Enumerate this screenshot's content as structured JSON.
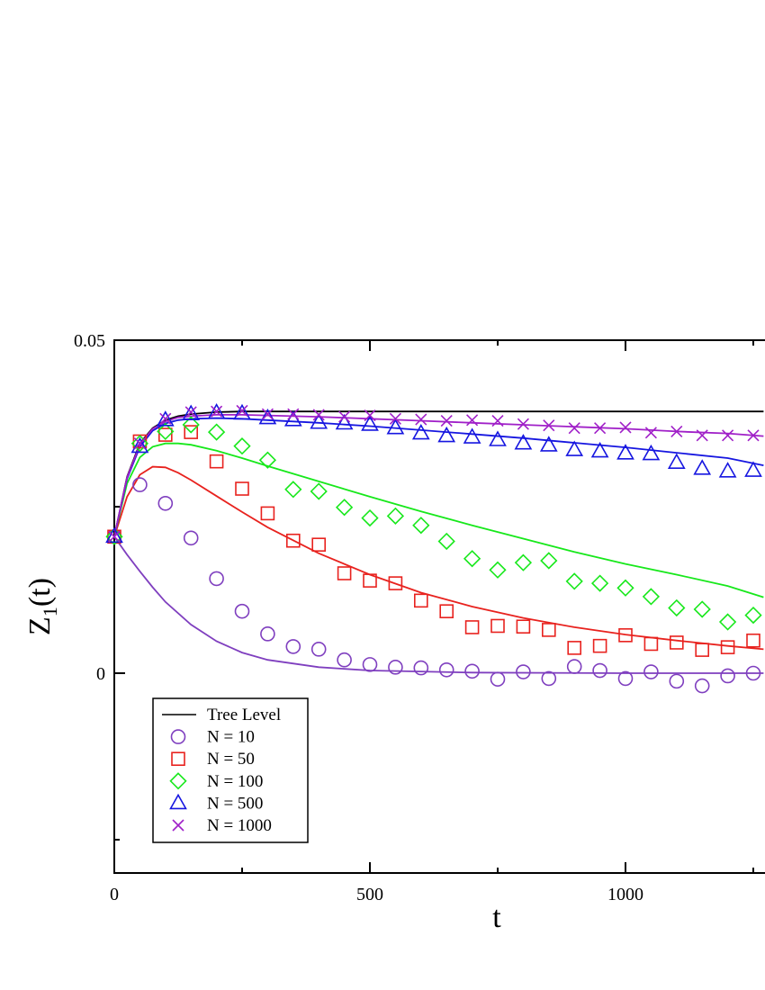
{
  "chart_data": {
    "type": "scatter",
    "xlabel": "t",
    "ylabel": "Z_1(t)",
    "xlim": [
      0,
      1270
    ],
    "ylim": [
      -0.03,
      0.05
    ],
    "x_ticks": [
      0,
      500,
      1000
    ],
    "x_tick_labels": [
      "0",
      "500",
      "1000"
    ],
    "y_ticks": [
      0,
      0.05
    ],
    "y_tick_labels": [
      "0",
      "0.05"
    ],
    "grid": false,
    "legend_position": "bottom-left",
    "legend_labels": [
      "Tree Level",
      "N = 10",
      "N = 50",
      "N = 100",
      "N = 500",
      "N = 1000"
    ],
    "series": [
      {
        "name": "Tree Level",
        "kind": "line",
        "color": "#000000",
        "x": [
          0,
          25,
          50,
          75,
          100,
          125,
          150,
          200,
          250,
          300,
          400,
          600,
          800,
          1000,
          1270
        ],
        "y": [
          0.0205,
          0.0295,
          0.0345,
          0.0368,
          0.038,
          0.0386,
          0.0389,
          0.0392,
          0.0393,
          0.0393,
          0.0393,
          0.0393,
          0.0393,
          0.0393,
          0.0393
        ]
      },
      {
        "name": "N = 10",
        "kind": "markers",
        "marker": "circle",
        "color": "#7f3fbf",
        "x": [
          0,
          50,
          100,
          150,
          200,
          250,
          300,
          350,
          400,
          450,
          500,
          550,
          600,
          650,
          700,
          750,
          800,
          850,
          900,
          950,
          1000,
          1050,
          1100,
          1150,
          1200,
          1250
        ],
        "y": [
          0.0205,
          0.0283,
          0.0255,
          0.0203,
          0.0142,
          0.0093,
          0.0059,
          0.004,
          0.0036,
          0.002,
          0.0013,
          0.0009,
          0.0008,
          0.0005,
          0.0003,
          -0.0009,
          0.0002,
          -0.0008,
          0.001,
          0.0004,
          -0.0008,
          0.0002,
          -0.0012,
          -0.0019,
          -0.0004,
          0.0
        ]
      },
      {
        "name": "N = 10 (fit)",
        "kind": "line",
        "color": "#7f3fbf",
        "x": [
          0,
          25,
          50,
          75,
          100,
          150,
          200,
          250,
          300,
          400,
          500,
          700,
          1000,
          1270
        ],
        "y": [
          0.0205,
          0.0178,
          0.0153,
          0.0129,
          0.0107,
          0.0073,
          0.0048,
          0.0031,
          0.002,
          0.0009,
          0.0004,
          0.0001,
          0.0,
          0.0
        ]
      },
      {
        "name": "N = 50",
        "kind": "markers",
        "marker": "square",
        "color": "#e8221e",
        "x": [
          0,
          50,
          100,
          150,
          200,
          250,
          300,
          350,
          400,
          450,
          500,
          550,
          600,
          650,
          700,
          750,
          800,
          850,
          900,
          950,
          1000,
          1050,
          1100,
          1150,
          1200,
          1250
        ],
        "y": [
          0.0205,
          0.0348,
          0.0358,
          0.0362,
          0.0318,
          0.0277,
          0.024,
          0.0199,
          0.0193,
          0.015,
          0.0139,
          0.0135,
          0.0109,
          0.0093,
          0.0069,
          0.0071,
          0.007,
          0.0065,
          0.0038,
          0.0041,
          0.0057,
          0.0044,
          0.0046,
          0.0035,
          0.0039,
          0.0049
        ]
      },
      {
        "name": "N = 50 (fit)",
        "kind": "line",
        "color": "#e8221e",
        "x": [
          0,
          25,
          50,
          75,
          100,
          125,
          150,
          200,
          250,
          300,
          400,
          500,
          600,
          700,
          800,
          900,
          1000,
          1100,
          1200,
          1270
        ],
        "y": [
          0.0205,
          0.0265,
          0.0298,
          0.031,
          0.0309,
          0.0301,
          0.029,
          0.0266,
          0.0242,
          0.0219,
          0.018,
          0.0148,
          0.0121,
          0.01,
          0.0083,
          0.0069,
          0.0058,
          0.0049,
          0.0041,
          0.0036
        ]
      },
      {
        "name": "N = 100",
        "kind": "markers",
        "marker": "diamond",
        "color": "#17e81b",
        "x": [
          0,
          50,
          100,
          150,
          200,
          250,
          300,
          350,
          400,
          450,
          500,
          550,
          600,
          650,
          700,
          750,
          800,
          850,
          900,
          950,
          1000,
          1050,
          1100,
          1150,
          1200,
          1250
        ],
        "y": [
          0.0205,
          0.0345,
          0.0363,
          0.0373,
          0.0362,
          0.0341,
          0.032,
          0.0276,
          0.0273,
          0.0249,
          0.0233,
          0.0236,
          0.0222,
          0.0198,
          0.0172,
          0.0155,
          0.0166,
          0.0169,
          0.0138,
          0.0135,
          0.0128,
          0.0115,
          0.0098,
          0.0096,
          0.0077,
          0.0087
        ]
      },
      {
        "name": "N = 100 (fit)",
        "kind": "line",
        "color": "#17e81b",
        "x": [
          0,
          25,
          50,
          75,
          100,
          125,
          150,
          200,
          250,
          300,
          400,
          500,
          600,
          700,
          800,
          900,
          1000,
          1100,
          1200,
          1270
        ],
        "y": [
          0.0205,
          0.0285,
          0.0324,
          0.034,
          0.0345,
          0.0345,
          0.0343,
          0.0334,
          0.0323,
          0.0311,
          0.0288,
          0.0265,
          0.0243,
          0.0222,
          0.0202,
          0.0182,
          0.0164,
          0.0148,
          0.0131,
          0.0114
        ]
      },
      {
        "name": "N = 500",
        "kind": "markers",
        "marker": "triangle",
        "color": "#1616e0",
        "x": [
          0,
          50,
          100,
          150,
          200,
          250,
          300,
          350,
          400,
          450,
          500,
          550,
          600,
          650,
          700,
          750,
          800,
          850,
          900,
          950,
          1000,
          1050,
          1100,
          1150,
          1200,
          1250
        ],
        "y": [
          0.0205,
          0.034,
          0.038,
          0.0389,
          0.0391,
          0.039,
          0.0383,
          0.038,
          0.0376,
          0.0375,
          0.0373,
          0.0368,
          0.036,
          0.0356,
          0.0354,
          0.035,
          0.0345,
          0.0342,
          0.0335,
          0.0333,
          0.033,
          0.0329,
          0.0316,
          0.0307,
          0.0303,
          0.0304
        ]
      },
      {
        "name": "N = 500 (fit)",
        "kind": "line",
        "color": "#1616e0",
        "x": [
          0,
          25,
          50,
          75,
          100,
          125,
          150,
          200,
          250,
          300,
          400,
          500,
          600,
          700,
          800,
          900,
          1000,
          1100,
          1200,
          1270
        ],
        "y": [
          0.0205,
          0.0292,
          0.034,
          0.0364,
          0.0375,
          0.038,
          0.0382,
          0.0383,
          0.0382,
          0.038,
          0.0376,
          0.0371,
          0.0365,
          0.0359,
          0.0353,
          0.0346,
          0.0339,
          0.0331,
          0.0323,
          0.0312
        ]
      },
      {
        "name": "N = 1000",
        "kind": "markers",
        "marker": "x",
        "color": "#a020c8",
        "x": [
          0,
          50,
          100,
          150,
          200,
          250,
          300,
          350,
          400,
          450,
          500,
          550,
          600,
          650,
          700,
          750,
          800,
          850,
          900,
          950,
          1000,
          1050,
          1100,
          1150,
          1200,
          1250
        ],
        "y": [
          0.0205,
          0.0345,
          0.0382,
          0.0392,
          0.0393,
          0.0394,
          0.0389,
          0.0389,
          0.0388,
          0.0385,
          0.0387,
          0.0382,
          0.0381,
          0.0379,
          0.038,
          0.0379,
          0.0374,
          0.0372,
          0.0368,
          0.0368,
          0.0369,
          0.0361,
          0.0363,
          0.0357,
          0.0357,
          0.0357
        ]
      },
      {
        "name": "N = 1000 (fit)",
        "kind": "line",
        "color": "#a020c8",
        "x": [
          0,
          25,
          50,
          75,
          100,
          125,
          150,
          200,
          250,
          300,
          400,
          500,
          600,
          700,
          800,
          900,
          1000,
          1100,
          1200,
          1270
        ],
        "y": [
          0.0205,
          0.0294,
          0.0343,
          0.0367,
          0.0378,
          0.0384,
          0.0386,
          0.0388,
          0.0388,
          0.0387,
          0.0385,
          0.0382,
          0.0379,
          0.0376,
          0.0373,
          0.037,
          0.0367,
          0.0363,
          0.036,
          0.0356
        ]
      }
    ]
  }
}
